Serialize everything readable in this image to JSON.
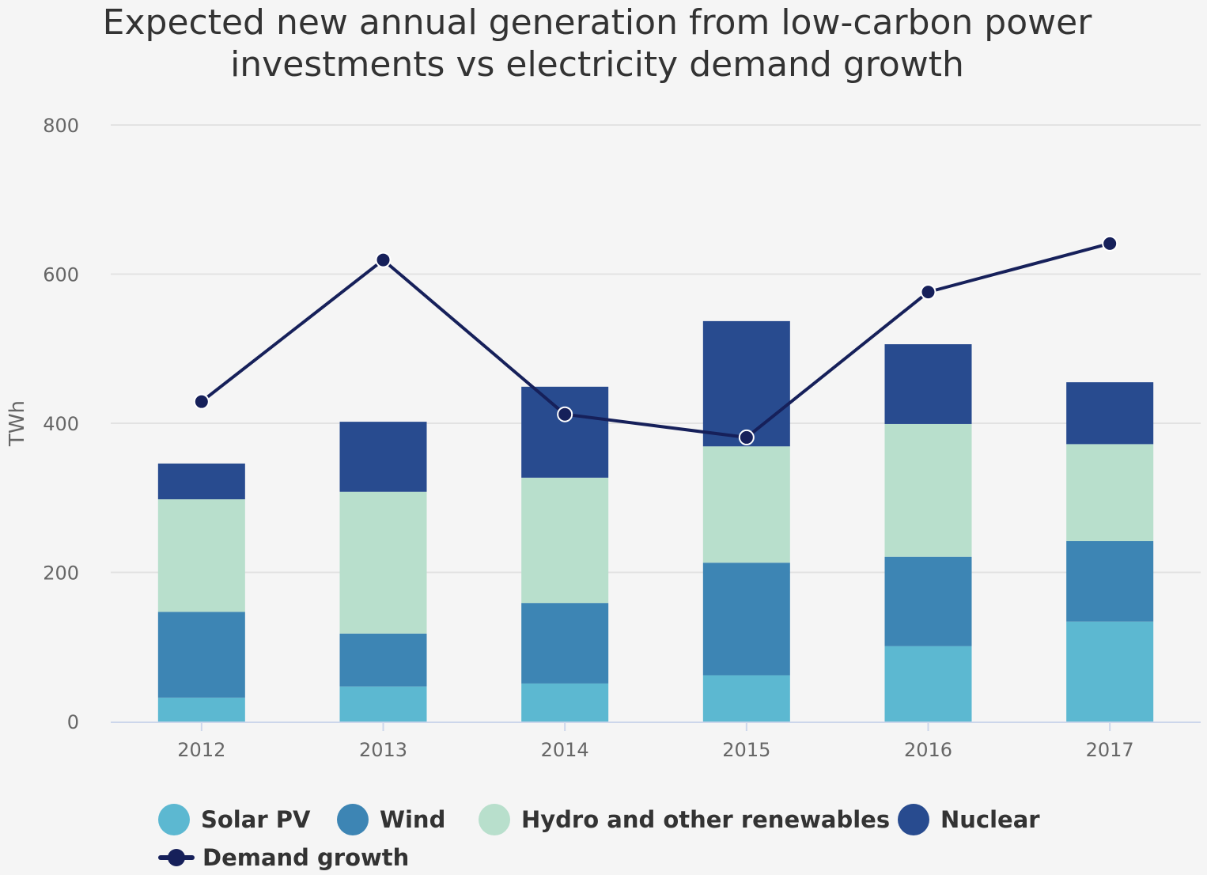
{
  "chart_data": {
    "type": "bar",
    "title_lines": [
      "Expected new annual generation from low-carbon power",
      "investments vs electricity demand growth"
    ],
    "ylabel": "TWh",
    "ylim": [
      0,
      800
    ],
    "yticks": [
      0,
      200,
      400,
      600,
      800
    ],
    "categories": [
      "2012",
      "2013",
      "2014",
      "2015",
      "2016",
      "2017"
    ],
    "stacked": true,
    "series": [
      {
        "name": "Solar PV",
        "color": "#5cb8d1",
        "values": [
          32,
          47,
          51,
          62,
          101,
          134
        ]
      },
      {
        "name": "Wind",
        "color": "#3d85b4",
        "values": [
          115,
          71,
          108,
          151,
          120,
          108
        ]
      },
      {
        "name": "Hydro and other renewables",
        "color": "#b8dfcc",
        "values": [
          151,
          190,
          168,
          156,
          178,
          130
        ]
      },
      {
        "name": "Nuclear",
        "color": "#284b8f",
        "values": [
          48,
          94,
          122,
          168,
          107,
          83
        ]
      }
    ],
    "line_series": {
      "name": "Demand growth",
      "color": "#16205a",
      "values": [
        429,
        619,
        412,
        381,
        576,
        641
      ]
    },
    "legend_position": "bottom"
  }
}
